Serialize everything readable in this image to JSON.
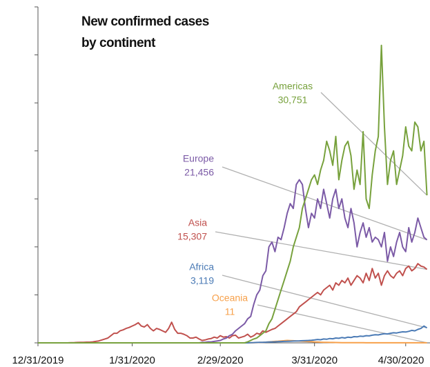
{
  "chart_data": {
    "type": "line",
    "title": [
      "New confirmed cases",
      "by continent"
    ],
    "x": [
      "12/31/2019",
      "1/1/2020",
      "1/2/2020",
      "1/3/2020",
      "1/4/2020",
      "1/5/2020",
      "1/6/2020",
      "1/7/2020",
      "1/8/2020",
      "1/9/2020",
      "1/10/2020",
      "1/11/2020",
      "1/12/2020",
      "1/13/2020",
      "1/14/2020",
      "1/15/2020",
      "1/16/2020",
      "1/17/2020",
      "1/18/2020",
      "1/19/2020",
      "1/20/2020",
      "1/21/2020",
      "1/22/2020",
      "1/23/2020",
      "1/24/2020",
      "1/25/2020",
      "1/26/2020",
      "1/27/2020",
      "1/28/2020",
      "1/29/2020",
      "1/30/2020",
      "1/31/2020",
      "2/1/2020",
      "2/2/2020",
      "2/3/2020",
      "2/4/2020",
      "2/5/2020",
      "2/6/2020",
      "2/7/2020",
      "2/8/2020",
      "2/9/2020",
      "2/10/2020",
      "2/11/2020",
      "2/12/2020",
      "2/13/2020",
      "2/14/2020",
      "2/15/2020",
      "2/16/2020",
      "2/17/2020",
      "2/18/2020",
      "2/19/2020",
      "2/20/2020",
      "2/21/2020",
      "2/22/2020",
      "2/23/2020",
      "2/24/2020",
      "2/25/2020",
      "2/26/2020",
      "2/27/2020",
      "2/28/2020",
      "2/29/2020",
      "3/1/2020",
      "3/2/2020",
      "3/3/2020",
      "3/4/2020",
      "3/5/2020",
      "3/6/2020",
      "3/7/2020",
      "3/8/2020",
      "3/9/2020",
      "3/10/2020",
      "3/11/2020",
      "3/12/2020",
      "3/13/2020",
      "3/14/2020",
      "3/15/2020",
      "3/16/2020",
      "3/17/2020",
      "3/18/2020",
      "3/19/2020",
      "3/20/2020",
      "3/21/2020",
      "3/22/2020",
      "3/23/2020",
      "3/24/2020",
      "3/25/2020",
      "3/26/2020",
      "3/27/2020",
      "3/28/2020",
      "3/29/2020",
      "3/30/2020",
      "3/31/2020",
      "4/1/2020",
      "4/2/2020",
      "4/3/2020",
      "4/4/2020",
      "4/5/2020",
      "4/6/2020",
      "4/7/2020",
      "4/8/2020",
      "4/9/2020",
      "4/10/2020",
      "4/11/2020",
      "4/12/2020",
      "4/13/2020",
      "4/14/2020",
      "4/15/2020",
      "4/16/2020",
      "4/17/2020",
      "4/18/2020",
      "4/19/2020",
      "4/20/2020",
      "4/21/2020",
      "4/22/2020",
      "4/23/2020",
      "4/24/2020",
      "4/25/2020",
      "4/26/2020",
      "4/27/2020",
      "4/28/2020",
      "4/29/2020",
      "4/30/2020",
      "5/1/2020",
      "5/2/2020",
      "5/3/2020",
      "5/4/2020",
      "5/5/2020",
      "5/6/2020",
      "5/7/2020"
    ],
    "series": [
      {
        "name": "Americas",
        "label": "30,751",
        "color": "#77a13c",
        "values": [
          0,
          0,
          0,
          0,
          0,
          0,
          0,
          0,
          0,
          0,
          0,
          0,
          0,
          0,
          0,
          0,
          0,
          0,
          0,
          0,
          0,
          0,
          0,
          0,
          0,
          0,
          0,
          0,
          0,
          0,
          0,
          0,
          0,
          0,
          0,
          0,
          0,
          0,
          0,
          0,
          0,
          0,
          0,
          0,
          0,
          0,
          0,
          0,
          0,
          0,
          0,
          0,
          0,
          0,
          0,
          0,
          0,
          0,
          0,
          0,
          0,
          0,
          0,
          0,
          0,
          0,
          0,
          0,
          0,
          200,
          500,
          800,
          1000,
          1500,
          2000,
          2500,
          4000,
          5000,
          7000,
          9000,
          11000,
          13000,
          15000,
          17000,
          20000,
          22000,
          24000,
          28000,
          30000,
          32000,
          34000,
          35000,
          33000,
          36000,
          38000,
          42000,
          40000,
          37000,
          43000,
          34000,
          38000,
          41000,
          42000,
          39000,
          32000,
          36000,
          33000,
          44000,
          30000,
          28000,
          35000,
          40000,
          43000,
          62000,
          45000,
          33000,
          38000,
          40000,
          33000,
          36000,
          39000,
          45000,
          41000,
          40000,
          46000,
          45000,
          40000,
          42000,
          30751
        ]
      },
      {
        "name": "Europe",
        "label": "21,456",
        "color": "#7b5aa6",
        "values": [
          0,
          0,
          0,
          0,
          0,
          0,
          0,
          0,
          0,
          0,
          0,
          0,
          0,
          0,
          0,
          0,
          0,
          0,
          0,
          0,
          0,
          0,
          0,
          0,
          0,
          0,
          0,
          0,
          0,
          0,
          0,
          0,
          0,
          0,
          0,
          0,
          0,
          0,
          0,
          0,
          0,
          0,
          0,
          0,
          0,
          0,
          0,
          0,
          0,
          0,
          0,
          0,
          0,
          0,
          100,
          100,
          200,
          200,
          300,
          400,
          500,
          800,
          1000,
          1500,
          1800,
          2500,
          3000,
          3500,
          4000,
          5000,
          5500,
          8000,
          10000,
          11000,
          14000,
          15000,
          20000,
          21000,
          19000,
          22000,
          21500,
          24000,
          27000,
          29000,
          28000,
          33000,
          34000,
          33000,
          28000,
          24000,
          27000,
          26000,
          30000,
          28000,
          32000,
          29000,
          26000,
          30000,
          32000,
          28000,
          30000,
          26000,
          24000,
          28000,
          25000,
          20000,
          23000,
          25000,
          22000,
          24000,
          21000,
          22000,
          21500,
          20000,
          23000,
          17000,
          20000,
          18000,
          21000,
          23000,
          20000,
          19000,
          24000,
          21000,
          23000,
          26000,
          24000,
          22000,
          21456
        ]
      },
      {
        "name": "Asia",
        "label": "15,307",
        "color": "#c0504d",
        "values": [
          0,
          0,
          0,
          0,
          0,
          0,
          0,
          0,
          0,
          0,
          20,
          40,
          60,
          80,
          100,
          100,
          150,
          150,
          200,
          300,
          400,
          600,
          800,
          1000,
          1500,
          2000,
          2000,
          2500,
          2700,
          3000,
          3200,
          3500,
          3800,
          4200,
          3500,
          3300,
          3800,
          3000,
          2500,
          3000,
          2800,
          2500,
          2200,
          3000,
          4300,
          2800,
          2000,
          2000,
          1800,
          1500,
          1000,
          1000,
          1200,
          800,
          500,
          600,
          800,
          900,
          1200,
          1000,
          1500,
          1200,
          1300,
          1000,
          1500,
          1600,
          1000,
          1200,
          1400,
          1800,
          1200,
          1500,
          2000,
          1800,
          2500,
          2200,
          2500,
          2800,
          3000,
          3500,
          4000,
          4500,
          5000,
          5500,
          6000,
          6500,
          7500,
          8000,
          8500,
          9000,
          9500,
          10000,
          10500,
          10000,
          11000,
          11500,
          12000,
          11000,
          12500,
          12000,
          13000,
          12500,
          13500,
          12000,
          13000,
          14000,
          13500,
          12500,
          14500,
          13000,
          15500,
          13500,
          14500,
          12000,
          14000,
          15000,
          14000,
          13500,
          14500,
          15000,
          14000,
          15500,
          16000,
          15000,
          15500,
          16500,
          16000,
          15800,
          15307
        ]
      },
      {
        "name": "Africa",
        "label": "3,119",
        "color": "#4a7ab5",
        "values": [
          0,
          0,
          0,
          0,
          0,
          0,
          0,
          0,
          0,
          0,
          0,
          0,
          0,
          0,
          0,
          0,
          0,
          0,
          0,
          0,
          0,
          0,
          0,
          0,
          0,
          0,
          0,
          0,
          0,
          0,
          0,
          0,
          0,
          0,
          0,
          0,
          0,
          0,
          0,
          0,
          0,
          0,
          0,
          0,
          0,
          0,
          0,
          0,
          0,
          0,
          0,
          0,
          0,
          0,
          0,
          0,
          0,
          0,
          0,
          0,
          0,
          0,
          0,
          0,
          0,
          0,
          0,
          0,
          0,
          0,
          50,
          60,
          80,
          100,
          120,
          150,
          180,
          200,
          220,
          250,
          280,
          300,
          320,
          350,
          380,
          400,
          420,
          450,
          480,
          500,
          550,
          600,
          700,
          650,
          800,
          750,
          900,
          850,
          1000,
          950,
          1100,
          1000,
          1200,
          1100,
          1300,
          1250,
          1400,
          1350,
          1500,
          1450,
          1600,
          1700,
          1650,
          1800,
          1900,
          1850,
          2000,
          2100,
          2050,
          2200,
          2300,
          2250,
          2400,
          2600,
          2500,
          2800,
          3000,
          3500,
          3119
        ]
      },
      {
        "name": "Oceania",
        "label": "11",
        "color": "#f7a04a",
        "values": [
          0,
          0,
          0,
          0,
          0,
          0,
          0,
          0,
          0,
          0,
          0,
          0,
          0,
          0,
          0,
          0,
          0,
          0,
          0,
          0,
          0,
          0,
          0,
          0,
          0,
          0,
          0,
          0,
          0,
          0,
          0,
          0,
          0,
          0,
          0,
          0,
          0,
          0,
          0,
          0,
          0,
          0,
          0,
          0,
          0,
          0,
          0,
          0,
          0,
          0,
          0,
          0,
          0,
          0,
          0,
          0,
          0,
          0,
          0,
          0,
          0,
          0,
          0,
          0,
          0,
          0,
          0,
          0,
          0,
          0,
          20,
          40,
          60,
          80,
          100,
          150,
          200,
          250,
          300,
          350,
          400,
          450,
          500,
          480,
          450,
          400,
          380,
          350,
          300,
          280,
          250,
          200,
          180,
          150,
          120,
          100,
          90,
          80,
          70,
          60,
          50,
          45,
          40,
          35,
          30,
          28,
          25,
          22,
          20,
          18,
          15,
          15,
          14,
          12,
          12,
          10,
          10,
          12,
          10,
          8,
          10,
          9,
          10,
          12,
          10,
          11,
          9,
          10,
          11
        ]
      }
    ],
    "xlim": [
      "12/31/2019",
      "5/8/2020"
    ],
    "xticks": [
      "12/31/2019",
      "1/31/2020",
      "2/29/2020",
      "3/31/2020",
      "4/30/2020"
    ],
    "ylim": [
      0,
      70000
    ],
    "yticks": [
      0,
      10000,
      20000,
      30000,
      40000,
      50000,
      60000,
      70000
    ]
  }
}
